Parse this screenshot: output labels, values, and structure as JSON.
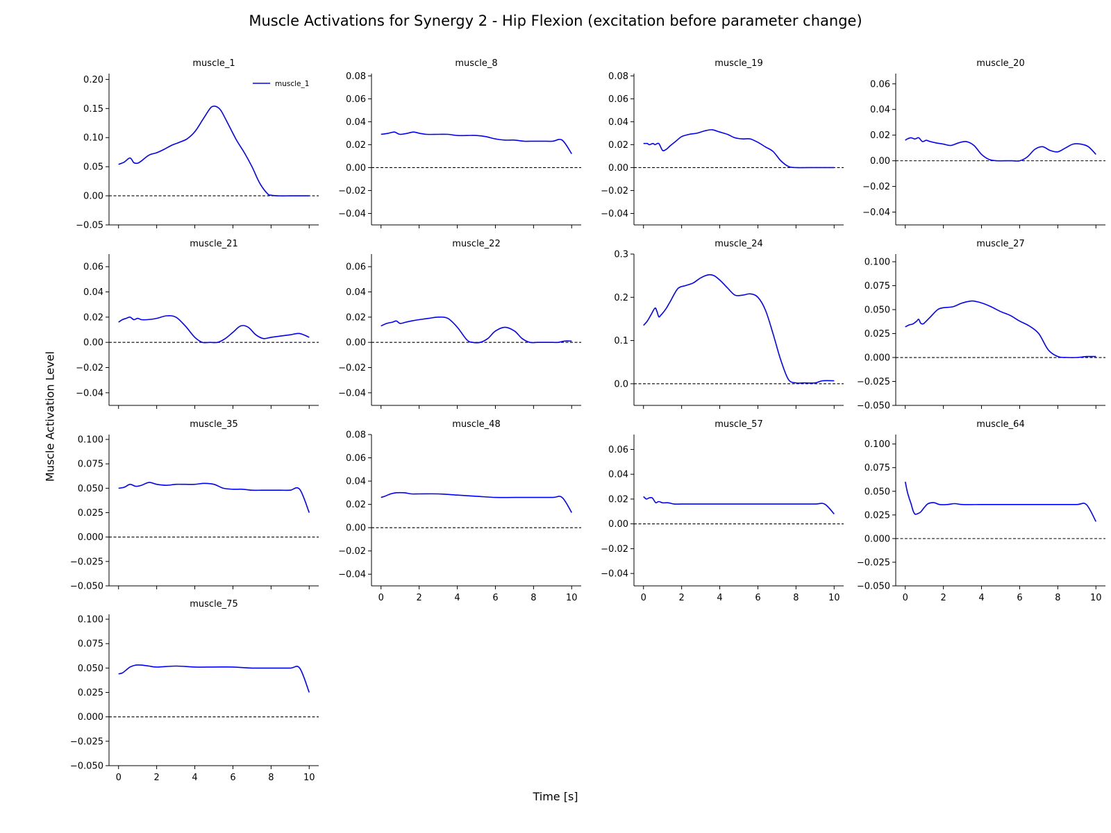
{
  "figure": {
    "title": "Muscle Activations for Synergy 2 - Hip Flexion (excitation before parameter change)",
    "xlabel": "Time [s]",
    "ylabel": "Muscle Activation Level"
  },
  "colors": {
    "line": "#0000ff",
    "zero_line": "#000000"
  },
  "chart_data": [
    {
      "type": "line",
      "title": "muscle_1",
      "legend": "muscle_1",
      "legend_position": "top-right",
      "ylim": [
        -0.05,
        0.21
      ],
      "yticks": [
        -0.05,
        0.0,
        0.05,
        0.1,
        0.15,
        0.2
      ],
      "decimals": 2,
      "x": [
        0,
        0.3,
        0.6,
        0.8,
        1.0,
        1.2,
        1.6,
        2.0,
        2.4,
        2.8,
        3.2,
        3.6,
        4.0,
        4.4,
        4.8,
        5.0,
        5.2,
        5.4,
        5.8,
        6.2,
        6.6,
        7.0,
        7.4,
        7.8,
        8.0,
        8.4,
        9.0,
        9.5,
        10
      ],
      "values": [
        0.054,
        0.058,
        0.065,
        0.057,
        0.056,
        0.06,
        0.07,
        0.074,
        0.08,
        0.087,
        0.092,
        0.098,
        0.11,
        0.13,
        0.15,
        0.154,
        0.152,
        0.145,
        0.12,
        0.095,
        0.074,
        0.05,
        0.022,
        0.004,
        0.001,
        0.0,
        0.0,
        0.0,
        0.0
      ]
    },
    {
      "type": "line",
      "title": "muscle_8",
      "ylim": [
        -0.05,
        0.082
      ],
      "yticks": [
        -0.04,
        -0.02,
        0.0,
        0.02,
        0.04,
        0.06,
        0.08
      ],
      "decimals": 2,
      "x": [
        0,
        0.4,
        0.7,
        1.0,
        1.4,
        1.7,
        2.0,
        2.4,
        3.0,
        3.5,
        4.0,
        4.5,
        5.0,
        5.5,
        6.0,
        6.5,
        7.0,
        7.5,
        8.0,
        8.5,
        9.0,
        9.5,
        10
      ],
      "values": [
        0.029,
        0.03,
        0.031,
        0.029,
        0.03,
        0.031,
        0.03,
        0.029,
        0.029,
        0.029,
        0.028,
        0.028,
        0.028,
        0.027,
        0.025,
        0.024,
        0.024,
        0.023,
        0.023,
        0.023,
        0.023,
        0.024,
        0.012
      ]
    },
    {
      "type": "line",
      "title": "muscle_19",
      "ylim": [
        -0.05,
        0.082
      ],
      "yticks": [
        -0.04,
        -0.02,
        0.0,
        0.02,
        0.04,
        0.06,
        0.08
      ],
      "decimals": 2,
      "x": [
        0,
        0.2,
        0.3,
        0.5,
        0.6,
        0.8,
        1.0,
        1.2,
        1.4,
        1.7,
        2.0,
        2.4,
        2.8,
        3.2,
        3.6,
        4.0,
        4.4,
        4.8,
        5.2,
        5.6,
        6.0,
        6.4,
        6.8,
        7.2,
        7.6,
        8.0,
        9.0,
        10
      ],
      "values": [
        0.021,
        0.021,
        0.02,
        0.021,
        0.02,
        0.021,
        0.015,
        0.016,
        0.019,
        0.023,
        0.027,
        0.029,
        0.03,
        0.032,
        0.033,
        0.031,
        0.029,
        0.026,
        0.025,
        0.025,
        0.022,
        0.018,
        0.014,
        0.006,
        0.001,
        0.0,
        0.0,
        0.0
      ]
    },
    {
      "type": "line",
      "title": "muscle_20",
      "ylim": [
        -0.05,
        0.068
      ],
      "yticks": [
        -0.04,
        -0.02,
        0.0,
        0.02,
        0.04,
        0.06
      ],
      "decimals": 2,
      "x": [
        0,
        0.1,
        0.3,
        0.5,
        0.7,
        0.9,
        1.1,
        1.3,
        1.6,
        2.0,
        2.4,
        2.8,
        3.2,
        3.6,
        4.0,
        4.4,
        4.8,
        5.2,
        5.6,
        6.0,
        6.4,
        6.8,
        7.2,
        7.6,
        8.0,
        8.4,
        8.8,
        9.2,
        9.6,
        10
      ],
      "values": [
        0.016,
        0.017,
        0.018,
        0.017,
        0.018,
        0.015,
        0.016,
        0.015,
        0.014,
        0.013,
        0.012,
        0.014,
        0.015,
        0.012,
        0.005,
        0.001,
        0.0,
        0.0,
        0.0,
        0.0,
        0.003,
        0.009,
        0.011,
        0.008,
        0.007,
        0.01,
        0.013,
        0.013,
        0.011,
        0.005
      ]
    },
    {
      "type": "line",
      "title": "muscle_21",
      "ylim": [
        -0.05,
        0.07
      ],
      "yticks": [
        -0.04,
        -0.02,
        0.0,
        0.02,
        0.04,
        0.06
      ],
      "decimals": 2,
      "x": [
        0,
        0.2,
        0.4,
        0.6,
        0.8,
        1.0,
        1.2,
        1.5,
        2.0,
        2.5,
        3.0,
        3.5,
        4.0,
        4.4,
        4.8,
        5.2,
        5.6,
        6.0,
        6.4,
        6.8,
        7.2,
        7.6,
        8.0,
        8.5,
        9.0,
        9.5,
        10
      ],
      "values": [
        0.016,
        0.018,
        0.019,
        0.02,
        0.018,
        0.019,
        0.018,
        0.018,
        0.019,
        0.021,
        0.02,
        0.013,
        0.004,
        0.0,
        0.0,
        0.0,
        0.003,
        0.008,
        0.013,
        0.012,
        0.006,
        0.003,
        0.004,
        0.005,
        0.006,
        0.007,
        0.004
      ]
    },
    {
      "type": "line",
      "title": "muscle_22",
      "ylim": [
        -0.05,
        0.07
      ],
      "yticks": [
        -0.04,
        -0.02,
        0.0,
        0.02,
        0.04,
        0.06
      ],
      "decimals": 2,
      "x": [
        0,
        0.3,
        0.6,
        0.8,
        1.0,
        1.3,
        1.6,
        2.0,
        2.5,
        3.0,
        3.5,
        4.0,
        4.5,
        4.8,
        5.2,
        5.6,
        6.0,
        6.5,
        7.0,
        7.4,
        7.8,
        8.2,
        8.6,
        9.0,
        9.3,
        9.6,
        10
      ],
      "values": [
        0.013,
        0.015,
        0.016,
        0.017,
        0.015,
        0.016,
        0.017,
        0.018,
        0.019,
        0.02,
        0.019,
        0.012,
        0.002,
        0.0,
        0.0,
        0.003,
        0.009,
        0.012,
        0.009,
        0.003,
        0.0,
        0.0,
        0.0,
        0.0,
        0.0,
        0.001,
        0.001
      ]
    },
    {
      "type": "line",
      "title": "muscle_24",
      "ylim": [
        -0.05,
        0.3
      ],
      "yticks": [
        0.0,
        0.1,
        0.2,
        0.3
      ],
      "decimals": 1,
      "x": [
        0,
        0.2,
        0.4,
        0.6,
        0.7,
        0.8,
        0.9,
        1.0,
        1.2,
        1.4,
        1.8,
        2.2,
        2.6,
        3.0,
        3.4,
        3.7,
        4.0,
        4.4,
        4.8,
        5.2,
        5.6,
        6.0,
        6.4,
        6.8,
        7.2,
        7.6,
        8.0,
        8.4,
        9.0,
        9.4,
        10
      ],
      "values": [
        0.135,
        0.145,
        0.16,
        0.175,
        0.168,
        0.155,
        0.158,
        0.163,
        0.175,
        0.19,
        0.22,
        0.227,
        0.233,
        0.245,
        0.252,
        0.25,
        0.24,
        0.222,
        0.205,
        0.205,
        0.208,
        0.2,
        0.17,
        0.115,
        0.055,
        0.01,
        0.002,
        0.002,
        0.002,
        0.007,
        0.007
      ]
    },
    {
      "type": "line",
      "title": "muscle_27",
      "ylim": [
        -0.05,
        0.108
      ],
      "yticks": [
        -0.05,
        -0.025,
        0.0,
        0.025,
        0.05,
        0.075,
        0.1
      ],
      "decimals": 3,
      "x": [
        0,
        0.2,
        0.4,
        0.6,
        0.7,
        0.8,
        0.9,
        1.0,
        1.3,
        1.7,
        2.0,
        2.5,
        3.0,
        3.5,
        4.0,
        4.5,
        5.0,
        5.5,
        6.0,
        6.5,
        7.0,
        7.5,
        8.0,
        8.5,
        9.0,
        9.5,
        10
      ],
      "values": [
        0.032,
        0.034,
        0.035,
        0.038,
        0.04,
        0.036,
        0.035,
        0.036,
        0.042,
        0.05,
        0.052,
        0.053,
        0.057,
        0.059,
        0.057,
        0.053,
        0.048,
        0.044,
        0.038,
        0.033,
        0.025,
        0.008,
        0.001,
        0.0,
        0.0,
        0.001,
        0.001
      ]
    },
    {
      "type": "line",
      "title": "muscle_35",
      "ylim": [
        -0.05,
        0.105
      ],
      "yticks": [
        -0.05,
        -0.025,
        0.0,
        0.025,
        0.05,
        0.075,
        0.1
      ],
      "decimals": 3,
      "x": [
        0,
        0.3,
        0.6,
        0.9,
        1.2,
        1.6,
        2.0,
        2.5,
        3.0,
        3.5,
        4.0,
        4.5,
        5.0,
        5.5,
        6.0,
        6.5,
        7.0,
        7.5,
        8.0,
        8.5,
        9.0,
        9.5,
        10
      ],
      "values": [
        0.05,
        0.051,
        0.054,
        0.052,
        0.053,
        0.056,
        0.054,
        0.053,
        0.054,
        0.054,
        0.054,
        0.055,
        0.054,
        0.05,
        0.049,
        0.049,
        0.048,
        0.048,
        0.048,
        0.048,
        0.048,
        0.049,
        0.025
      ]
    },
    {
      "type": "line",
      "title": "muscle_48",
      "ylim": [
        -0.05,
        0.08
      ],
      "yticks": [
        -0.04,
        -0.02,
        0.0,
        0.02,
        0.04,
        0.06,
        0.08
      ],
      "decimals": 2,
      "x": [
        0,
        0.2,
        0.5,
        0.8,
        1.2,
        1.6,
        2.0,
        3.0,
        4.0,
        5.0,
        6.0,
        7.0,
        8.0,
        9.0,
        9.5,
        10
      ],
      "values": [
        0.026,
        0.027,
        0.029,
        0.03,
        0.03,
        0.029,
        0.029,
        0.029,
        0.028,
        0.027,
        0.026,
        0.026,
        0.026,
        0.026,
        0.026,
        0.013
      ]
    },
    {
      "type": "line",
      "title": "muscle_57",
      "ylim": [
        -0.05,
        0.072
      ],
      "yticks": [
        -0.04,
        -0.02,
        0.0,
        0.02,
        0.04,
        0.06
      ],
      "decimals": 2,
      "x": [
        0,
        0.15,
        0.3,
        0.45,
        0.55,
        0.65,
        0.8,
        1.0,
        1.3,
        1.6,
        2.0,
        2.5,
        3.0,
        4.0,
        5.0,
        6.0,
        7.0,
        8.0,
        9.0,
        9.5,
        10
      ],
      "values": [
        0.022,
        0.02,
        0.021,
        0.021,
        0.019,
        0.017,
        0.018,
        0.017,
        0.017,
        0.016,
        0.016,
        0.016,
        0.016,
        0.016,
        0.016,
        0.016,
        0.016,
        0.016,
        0.016,
        0.016,
        0.008
      ]
    },
    {
      "type": "line",
      "title": "muscle_64",
      "ylim": [
        -0.05,
        0.11
      ],
      "yticks": [
        -0.05,
        -0.025,
        0.0,
        0.025,
        0.05,
        0.075,
        0.1
      ],
      "decimals": 3,
      "x": [
        0,
        0.1,
        0.2,
        0.3,
        0.4,
        0.5,
        0.6,
        0.8,
        1.0,
        1.2,
        1.5,
        1.8,
        2.2,
        2.6,
        3.0,
        4.0,
        5.0,
        6.0,
        7.0,
        8.0,
        9.0,
        9.5,
        10
      ],
      "values": [
        0.06,
        0.05,
        0.043,
        0.037,
        0.03,
        0.026,
        0.026,
        0.028,
        0.033,
        0.037,
        0.038,
        0.036,
        0.036,
        0.037,
        0.036,
        0.036,
        0.036,
        0.036,
        0.036,
        0.036,
        0.036,
        0.036,
        0.018
      ]
    },
    {
      "type": "line",
      "title": "muscle_75",
      "ylim": [
        -0.05,
        0.105
      ],
      "yticks": [
        -0.05,
        -0.025,
        0.0,
        0.025,
        0.05,
        0.075,
        0.1
      ],
      "decimals": 3,
      "x": [
        0,
        0.2,
        0.4,
        0.6,
        0.9,
        1.2,
        1.6,
        2.0,
        3.0,
        4.0,
        5.0,
        6.0,
        7.0,
        8.0,
        9.0,
        9.5,
        10
      ],
      "values": [
        0.044,
        0.045,
        0.048,
        0.051,
        0.053,
        0.053,
        0.052,
        0.051,
        0.052,
        0.051,
        0.051,
        0.051,
        0.05,
        0.05,
        0.05,
        0.05,
        0.025
      ]
    }
  ],
  "x_axis": {
    "xlim": [
      -0.5,
      10.5
    ],
    "xticks": [
      0,
      2,
      4,
      6,
      8,
      10
    ],
    "tick_labels_on_bottom_only": true
  }
}
